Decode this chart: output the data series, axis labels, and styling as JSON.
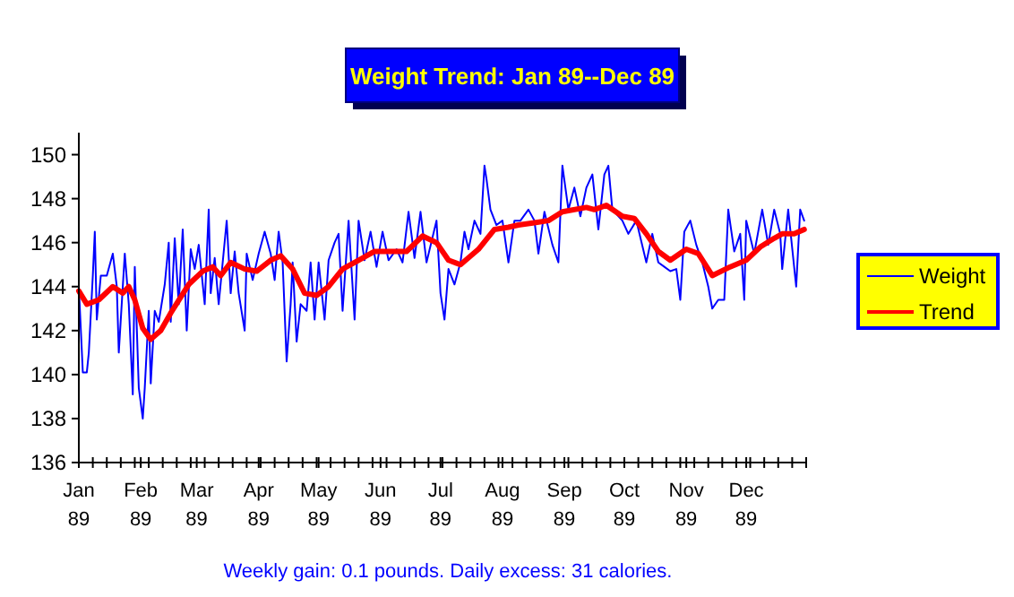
{
  "chart_data": {
    "type": "line",
    "title": "Weight Trend: Jan 89--Dec 89",
    "annotations": [
      "Weekly gain: 0.1 pounds.  Daily excess: 31 calories."
    ],
    "xlim": [
      "1989-01-01",
      "1989-12-31"
    ],
    "xticks": [
      {
        "value": "1989-01-01",
        "label": "Jan 89"
      },
      {
        "value": "1989-01-08",
        "label": null
      },
      {
        "value": "1989-01-15",
        "label": null
      },
      {
        "value": "1989-01-22",
        "label": null
      },
      {
        "value": "1989-01-29",
        "label": null
      },
      {
        "value": "1989-02-01",
        "label": "Feb 89"
      },
      {
        "value": "1989-02-05",
        "label": null
      },
      {
        "value": "1989-02-12",
        "label": null
      },
      {
        "value": "1989-02-19",
        "label": null
      },
      {
        "value": "1989-02-26",
        "label": null
      },
      {
        "value": "1989-03-01",
        "label": "Mar 89"
      },
      {
        "value": "1989-03-05",
        "label": null
      },
      {
        "value": "1989-03-12",
        "label": null
      },
      {
        "value": "1989-03-19",
        "label": null
      },
      {
        "value": "1989-03-26",
        "label": null
      },
      {
        "value": "1989-04-01",
        "label": "Apr 89"
      },
      {
        "value": "1989-04-02",
        "label": null
      },
      {
        "value": "1989-04-09",
        "label": null
      },
      {
        "value": "1989-04-16",
        "label": null
      },
      {
        "value": "1989-04-23",
        "label": null
      },
      {
        "value": "1989-04-30",
        "label": null
      },
      {
        "value": "1989-05-01",
        "label": "May 89"
      },
      {
        "value": "1989-05-07",
        "label": null
      },
      {
        "value": "1989-05-14",
        "label": null
      },
      {
        "value": "1989-05-21",
        "label": null
      },
      {
        "value": "1989-05-28",
        "label": null
      },
      {
        "value": "1989-06-01",
        "label": "Jun 89"
      },
      {
        "value": "1989-06-04",
        "label": null
      },
      {
        "value": "1989-06-11",
        "label": null
      },
      {
        "value": "1989-06-18",
        "label": null
      },
      {
        "value": "1989-06-25",
        "label": null
      },
      {
        "value": "1989-07-01",
        "label": "Jul 89"
      },
      {
        "value": "1989-07-02",
        "label": null
      },
      {
        "value": "1989-07-09",
        "label": null
      },
      {
        "value": "1989-07-16",
        "label": null
      },
      {
        "value": "1989-07-23",
        "label": null
      },
      {
        "value": "1989-07-30",
        "label": null
      },
      {
        "value": "1989-08-01",
        "label": "Aug 89"
      },
      {
        "value": "1989-08-06",
        "label": null
      },
      {
        "value": "1989-08-13",
        "label": null
      },
      {
        "value": "1989-08-20",
        "label": null
      },
      {
        "value": "1989-08-27",
        "label": null
      },
      {
        "value": "1989-09-01",
        "label": "Sep 89"
      },
      {
        "value": "1989-09-03",
        "label": null
      },
      {
        "value": "1989-09-10",
        "label": null
      },
      {
        "value": "1989-09-17",
        "label": null
      },
      {
        "value": "1989-09-24",
        "label": null
      },
      {
        "value": "1989-10-01",
        "label": "Oct 89"
      },
      {
        "value": "1989-10-08",
        "label": null
      },
      {
        "value": "1989-10-15",
        "label": null
      },
      {
        "value": "1989-10-22",
        "label": null
      },
      {
        "value": "1989-10-29",
        "label": null
      },
      {
        "value": "1989-11-01",
        "label": "Nov 89"
      },
      {
        "value": "1989-11-05",
        "label": null
      },
      {
        "value": "1989-11-12",
        "label": null
      },
      {
        "value": "1989-11-19",
        "label": null
      },
      {
        "value": "1989-11-26",
        "label": null
      },
      {
        "value": "1989-12-01",
        "label": "Dec 89"
      },
      {
        "value": "1989-12-03",
        "label": null
      },
      {
        "value": "1989-12-10",
        "label": null
      },
      {
        "value": "1989-12-17",
        "label": null
      },
      {
        "value": "1989-12-24",
        "label": null
      },
      {
        "value": "1989-12-31",
        "label": null
      }
    ],
    "ylim": [
      136,
      151
    ],
    "yticks": [
      136,
      138,
      140,
      142,
      144,
      146,
      148,
      150
    ],
    "grid": false,
    "legend": "right",
    "marker": "none",
    "series": [
      {
        "name": "Weight",
        "color": "#0000ff",
        "x": [
          "1989-01-01",
          "1989-01-03",
          "1989-01-05",
          "1989-01-06",
          "1989-01-08",
          "1989-01-09",
          "1989-01-10",
          "1989-01-12",
          "1989-01-15",
          "1989-01-18",
          "1989-01-20",
          "1989-01-21",
          "1989-01-24",
          "1989-01-26",
          "1989-01-28",
          "1989-01-29",
          "1989-01-31",
          "1989-02-02",
          "1989-02-03",
          "1989-02-05",
          "1989-02-06",
          "1989-02-08",
          "1989-02-10",
          "1989-02-13",
          "1989-02-15",
          "1989-02-16",
          "1989-02-18",
          "1989-02-20",
          "1989-02-22",
          "1989-02-24",
          "1989-02-26",
          "1989-02-28",
          "1989-03-02",
          "1989-03-05",
          "1989-03-07",
          "1989-03-08",
          "1989-03-10",
          "1989-03-12",
          "1989-03-16",
          "1989-03-18",
          "1989-03-20",
          "1989-03-22",
          "1989-03-25",
          "1989-03-26",
          "1989-03-29",
          "1989-04-01",
          "1989-04-04",
          "1989-04-07",
          "1989-04-09",
          "1989-04-11",
          "1989-04-13",
          "1989-04-15",
          "1989-04-17",
          "1989-04-18",
          "1989-04-20",
          "1989-04-22",
          "1989-04-25",
          "1989-04-27",
          "1989-04-29",
          "1989-05-01",
          "1989-05-04",
          "1989-05-06",
          "1989-05-09",
          "1989-05-11",
          "1989-05-13",
          "1989-05-16",
          "1989-05-19",
          "1989-05-21",
          "1989-05-24",
          "1989-05-27",
          "1989-05-30",
          "1989-06-02",
          "1989-06-05",
          "1989-06-09",
          "1989-06-12",
          "1989-06-15",
          "1989-06-18",
          "1989-06-21",
          "1989-06-24",
          "1989-06-29",
          "1989-07-01",
          "1989-07-03",
          "1989-07-05",
          "1989-07-08",
          "1989-07-11",
          "1989-07-13",
          "1989-07-15",
          "1989-07-18",
          "1989-07-21",
          "1989-07-23",
          "1989-07-24",
          "1989-07-26",
          "1989-07-29",
          "1989-08-01",
          "1989-08-04",
          "1989-08-07",
          "1989-08-10",
          "1989-08-14",
          "1989-08-17",
          "1989-08-19",
          "1989-08-22",
          "1989-08-26",
          "1989-08-29",
          "1989-08-31",
          "1989-09-03",
          "1989-09-06",
          "1989-09-09",
          "1989-09-12",
          "1989-09-15",
          "1989-09-18",
          "1989-09-21",
          "1989-09-23",
          "1989-09-25",
          "1989-09-30",
          "1989-10-03",
          "1989-10-07",
          "1989-10-12",
          "1989-10-15",
          "1989-10-18",
          "1989-10-21",
          "1989-10-24",
          "1989-10-27",
          "1989-10-29",
          "1989-10-31",
          "1989-11-03",
          "1989-11-06",
          "1989-11-09",
          "1989-11-12",
          "1989-11-14",
          "1989-11-17",
          "1989-11-20",
          "1989-11-22",
          "1989-11-25",
          "1989-11-28",
          "1989-11-30",
          "1989-12-01",
          "1989-12-05",
          "1989-12-09",
          "1989-12-12",
          "1989-12-15",
          "1989-12-18",
          "1989-12-19",
          "1989-12-22",
          "1989-12-26",
          "1989-12-28",
          "1989-12-30"
        ],
        "values": [
          144.0,
          140.1,
          140.1,
          141.0,
          144.5,
          146.5,
          142.5,
          144.5,
          144.5,
          145.5,
          144.0,
          141.0,
          145.5,
          143.2,
          139.1,
          144.9,
          139.4,
          138.0,
          139.4,
          142.9,
          139.6,
          142.9,
          142.4,
          144.1,
          146.0,
          142.4,
          146.2,
          143.2,
          146.6,
          142.0,
          145.7,
          144.8,
          145.9,
          143.2,
          147.5,
          143.7,
          145.3,
          143.2,
          147.0,
          143.7,
          145.6,
          143.7,
          142.0,
          145.5,
          144.3,
          145.5,
          146.5,
          145.5,
          144.3,
          146.5,
          145.1,
          140.6,
          143.2,
          145.1,
          141.5,
          143.2,
          142.9,
          145.1,
          142.5,
          145.1,
          142.5,
          145.2,
          146.0,
          146.4,
          142.9,
          147.0,
          142.5,
          147.0,
          145.2,
          146.5,
          144.9,
          146.5,
          145.2,
          145.7,
          145.1,
          147.4,
          145.3,
          147.4,
          145.1,
          147.0,
          143.7,
          142.5,
          144.8,
          144.1,
          145.1,
          146.5,
          145.7,
          147.0,
          146.4,
          149.5,
          148.9,
          147.5,
          146.8,
          147.0,
          145.1,
          147.0,
          147.0,
          147.5,
          147.0,
          145.5,
          147.4,
          145.9,
          145.1,
          149.5,
          147.5,
          148.5,
          147.2,
          148.5,
          149.1,
          146.6,
          149.1,
          149.5,
          147.5,
          147.0,
          146.4,
          147.0,
          145.1,
          146.4,
          145.1,
          144.9,
          144.7,
          144.8,
          143.4,
          146.5,
          147.0,
          145.9,
          145.1,
          144.0,
          143.0,
          143.4,
          143.4,
          147.5,
          145.6,
          146.4,
          143.4,
          147.0,
          145.5,
          147.5,
          145.9,
          147.5,
          146.4,
          144.8,
          147.5,
          144.0,
          147.5,
          147.0
        ]
      },
      {
        "name": "Trend",
        "color": "#ff0000",
        "x": [
          "1989-01-01",
          "1989-01-05",
          "1989-01-11",
          "1989-01-18",
          "1989-01-23",
          "1989-01-26",
          "1989-01-29",
          "1989-02-02",
          "1989-02-06",
          "1989-02-11",
          "1989-02-16",
          "1989-02-25",
          "1989-03-04",
          "1989-03-09",
          "1989-03-13",
          "1989-03-18",
          "1989-03-25",
          "1989-03-31",
          "1989-04-07",
          "1989-04-12",
          "1989-04-18",
          "1989-04-24",
          "1989-04-30",
          "1989-05-06",
          "1989-05-13",
          "1989-05-21",
          "1989-05-29",
          "1989-06-05",
          "1989-06-14",
          "1989-06-22",
          "1989-06-29",
          "1989-07-05",
          "1989-07-11",
          "1989-07-20",
          "1989-07-28",
          "1989-08-04",
          "1989-08-09",
          "1989-08-17",
          "1989-08-24",
          "1989-08-31",
          "1989-09-12",
          "1989-09-16",
          "1989-09-22",
          "1989-09-30",
          "1989-10-06",
          "1989-10-12",
          "1989-10-18",
          "1989-10-24",
          "1989-11-01",
          "1989-11-07",
          "1989-11-14",
          "1989-11-23",
          "1989-12-01",
          "1989-12-08",
          "1989-12-15",
          "1989-12-19",
          "1989-12-25",
          "1989-12-30"
        ],
        "values": [
          143.8,
          143.2,
          143.4,
          144.0,
          143.7,
          144.0,
          143.4,
          142.1,
          141.6,
          142.0,
          142.8,
          144.1,
          144.7,
          144.9,
          144.5,
          145.1,
          144.8,
          144.7,
          145.2,
          145.4,
          144.8,
          143.7,
          143.6,
          144.0,
          144.8,
          145.2,
          145.6,
          145.6,
          145.6,
          146.3,
          146.0,
          145.2,
          145.0,
          145.7,
          146.6,
          146.7,
          146.8,
          146.9,
          147.0,
          147.4,
          147.6,
          147.5,
          147.7,
          147.2,
          147.1,
          146.4,
          145.6,
          145.2,
          145.7,
          145.5,
          144.5,
          144.9,
          145.2,
          145.8,
          146.2,
          146.4,
          146.4,
          146.6
        ]
      }
    ]
  }
}
